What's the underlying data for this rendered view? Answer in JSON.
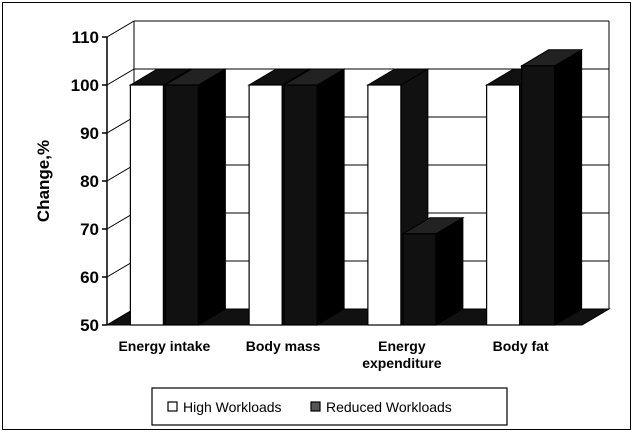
{
  "chart_data": {
    "type": "bar",
    "title": "",
    "xlabel": "",
    "ylabel": "Change,%",
    "ylim": [
      50,
      110
    ],
    "yticks": [
      "50",
      "60",
      "70",
      "80",
      "90",
      "100",
      "110"
    ],
    "categories": [
      [
        "Energy intake"
      ],
      [
        "Body mass"
      ],
      [
        "Energy",
        "expenditure"
      ],
      [
        "Body fat"
      ]
    ],
    "series": [
      {
        "name": "High Workloads",
        "values": [
          100,
          100,
          100,
          100
        ],
        "color": "#ffffff"
      },
      {
        "name": "Reduced Workloads",
        "values": [
          100,
          100,
          69,
          104
        ],
        "color": "#111111"
      }
    ],
    "grid": true,
    "legend_position": "bottom"
  }
}
